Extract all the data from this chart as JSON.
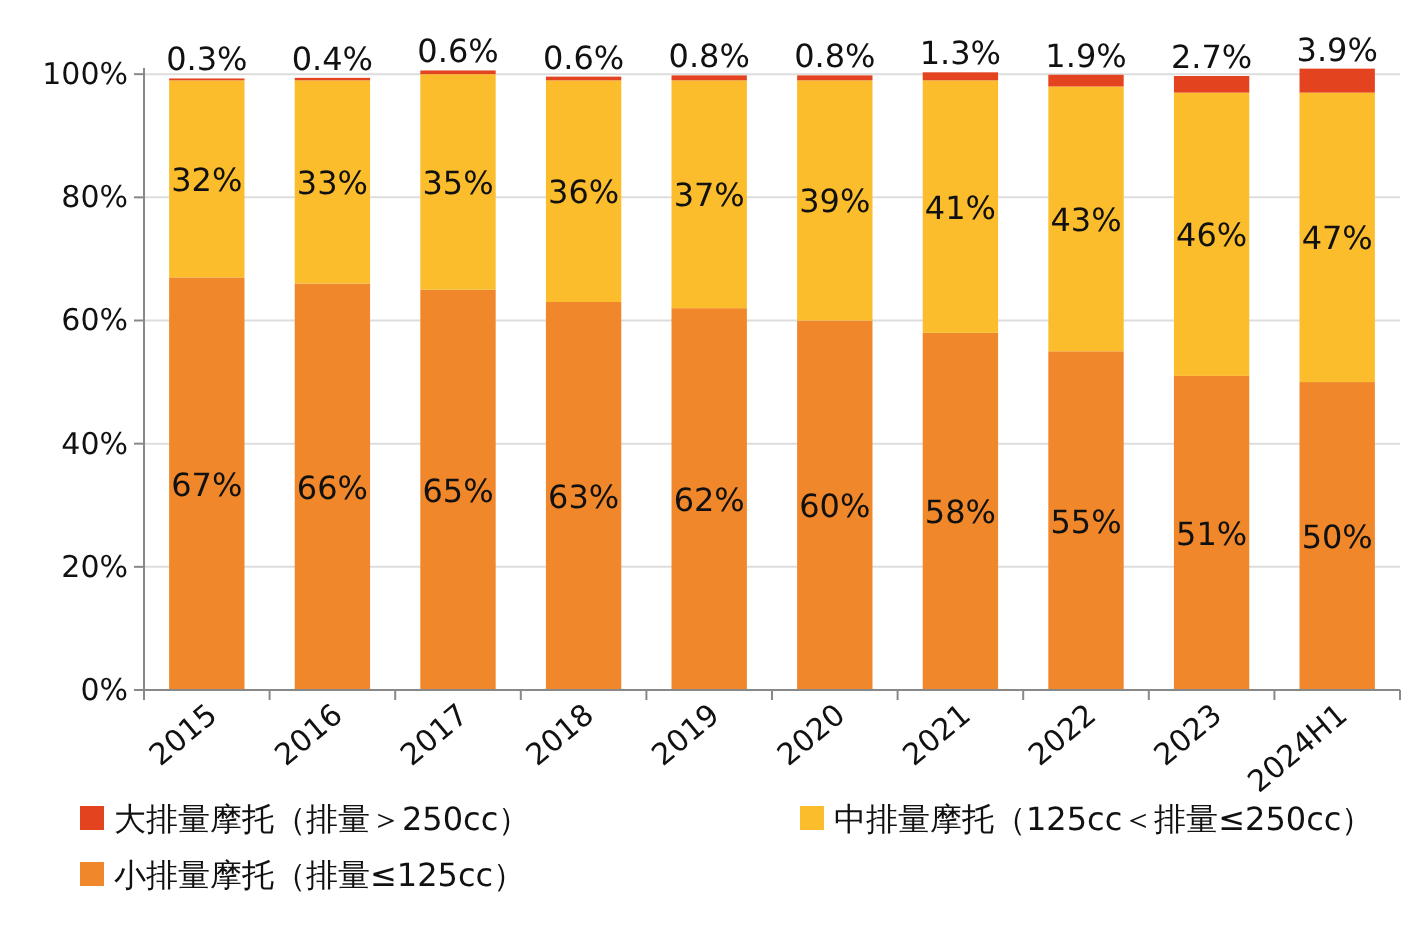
{
  "chart_data": {
    "type": "bar",
    "stacked": true,
    "categories": [
      "2015",
      "2016",
      "2017",
      "2018",
      "2019",
      "2020",
      "2021",
      "2022",
      "2023",
      "2024H1"
    ],
    "series": [
      {
        "name": "小排量摩托（排量≤125cc）",
        "color": "#f0872a",
        "values": [
          67,
          66,
          65,
          63,
          62,
          60,
          58,
          55,
          51,
          50
        ],
        "value_labels": [
          "67%",
          "66%",
          "65%",
          "63%",
          "62%",
          "60%",
          "58%",
          "55%",
          "51%",
          "50%"
        ]
      },
      {
        "name": "中排量摩托（125cc＜排量≤250cc）",
        "color": "#fbbd2c",
        "values": [
          32,
          33,
          35,
          36,
          37,
          39,
          41,
          43,
          46,
          47
        ],
        "value_labels": [
          "32%",
          "33%",
          "35%",
          "36%",
          "37%",
          "39%",
          "41%",
          "43%",
          "46%",
          "47%"
        ]
      },
      {
        "name": "大排量摩托（排量＞250cc）",
        "color": "#e3441f",
        "values": [
          0.3,
          0.4,
          0.6,
          0.6,
          0.8,
          0.8,
          1.3,
          1.9,
          2.7,
          3.9
        ],
        "value_labels": [
          "0.3%",
          "0.4%",
          "0.6%",
          "0.6%",
          "0.8%",
          "0.8%",
          "1.3%",
          "1.9%",
          "2.7%",
          "3.9%"
        ]
      }
    ],
    "ylim": [
      0,
      101
    ],
    "yticks": [
      {
        "value": 0,
        "label": "0%"
      },
      {
        "value": 20,
        "label": "20%"
      },
      {
        "value": 40,
        "label": "40%"
      },
      {
        "value": 60,
        "label": "60%"
      },
      {
        "value": 80,
        "label": "80%"
      },
      {
        "value": 100,
        "label": "100%"
      }
    ],
    "grid": "y",
    "legend": "bottom"
  }
}
